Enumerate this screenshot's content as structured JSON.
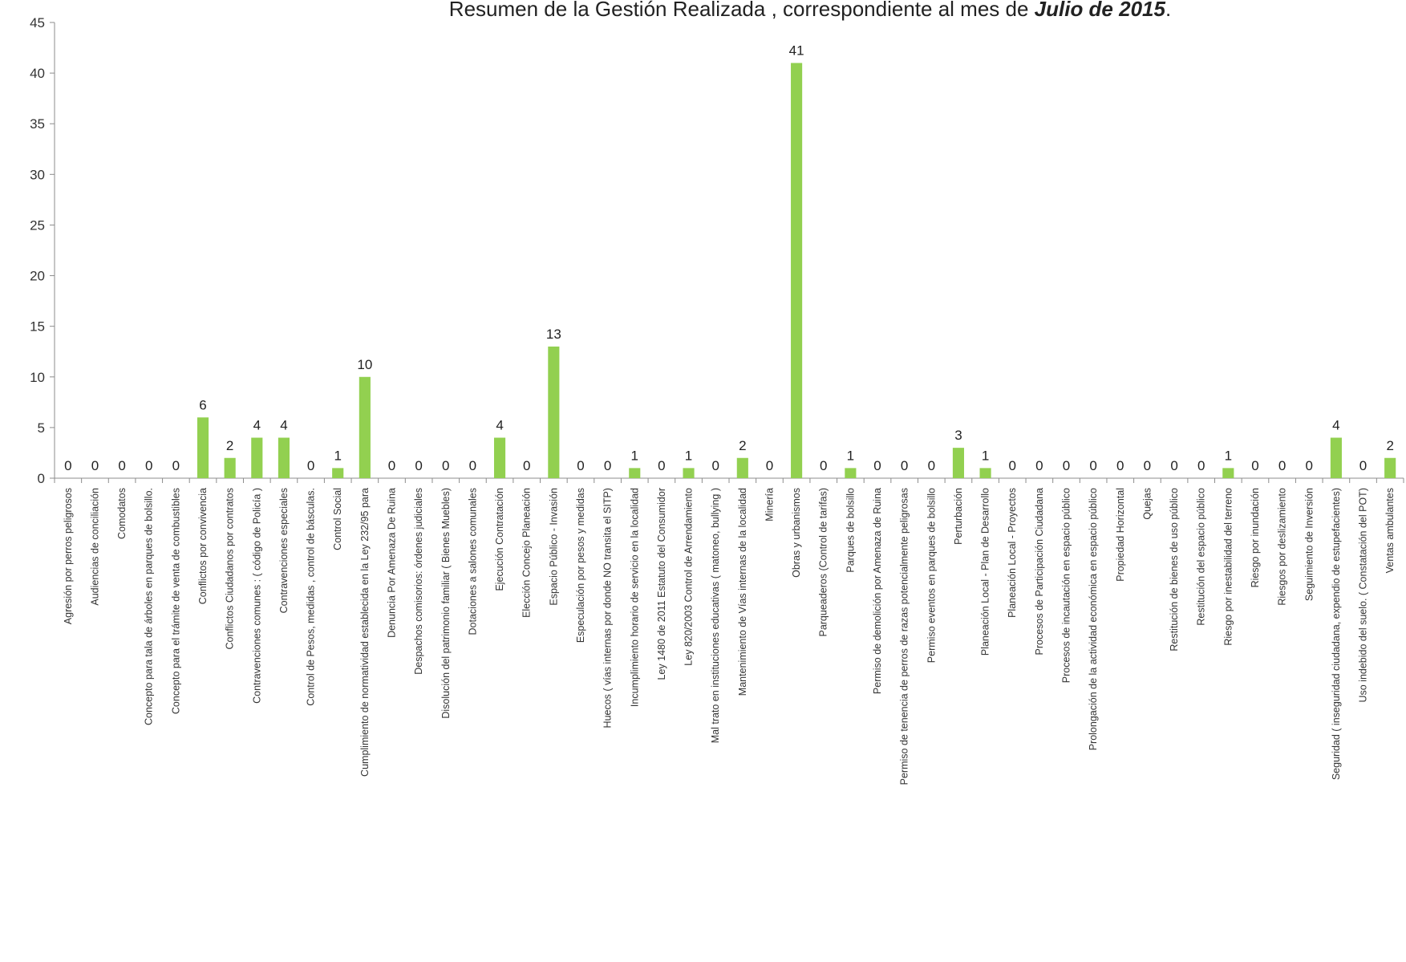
{
  "chart_data": {
    "type": "bar",
    "title": "Resumen de  la Gestión Realizada , correspondiente al mes  de ",
    "title_emphasis": "Julio de 2015",
    "title_end": ".",
    "xlabel": "",
    "ylabel": "",
    "ylim": [
      0,
      45
    ],
    "yticks": [
      "0",
      "5",
      "10",
      "15",
      "20",
      "25",
      "30",
      "35",
      "40",
      "45"
    ],
    "grid": false,
    "legend": "none",
    "bar_color": "#92d050",
    "categories": [
      "Agresión por perros peligrosos",
      "Audiencias de conciliación",
      "Comodatos",
      "Concepto para  tala de árboles en parques de bolsillo.",
      "Concepto para el trámite de venta de combustibles",
      "Conflictos  por convivencia",
      "Conflictos Ciudadanos  por contratos",
      "Contravenciones  comunes : ( código de Policía )",
      "Contravenciones especiales",
      "Control de Pesos, medidas , control de básculas.",
      "Control Social",
      "Cumplimiento de normatividad establecida en  la Ley 232/95 para",
      "Denuncia Por Amenaza De Ruina",
      "Despachos comisorios:  órdenes judiciales",
      "Disolución del patrimonio familiar ( Bienes Muebles)",
      "Dotaciones a salones comunales",
      "Ejecución Contratación",
      "Elección Concejo Planeación",
      "Espacio Público - Invasión",
      "Especulación por pesos y medidas",
      "Huecos ( vías internas por donde NO transita el SITP)",
      "Incumplimiento horario de servicio en la localidad",
      "Ley 1480 de 2011 Estatuto del Consumidor",
      "Ley 820/2003 Control de Arrendamiento",
      "Mal trato en  instituciones educativas ( matoneo, bullying )",
      "Mantenimiento de  Vías internas de la localidad",
      "Minería",
      "Obras y urbanismos",
      "Parqueaderos (Control de tarifas)",
      "Parques de bolsillo",
      "Permiso  de demolición por Amenaza de Ruina",
      "Permiso de tenencia de perros  de razas potencialmente peligrosas",
      "Permiso eventos en parques de bolsillo",
      "Perturbación",
      "Planeación Local - Plan de Desarrollo",
      "Planeación Local - Proyectos",
      "Procesos  de  Participación Ciudadana",
      "Procesos de incautación en espacio público",
      "Prolongación de  la actividad económica en espacio público",
      "Propiedad Horizontal",
      "Quejas",
      "Restitución de bienes de uso público",
      "Restitución del espacio público",
      "Riesgo por inestabilidad del terreno",
      "Riesgo por inundación",
      "Riesgos por deslizamiento",
      "Seguimiento de Inversión",
      "Seguridad ( inseguridad ciudadana, expendio de estupefacientes)",
      "Uso indebido del suelo.  ( Constatación del POT)",
      "Ventas ambulantes"
    ],
    "values": [
      0,
      0,
      0,
      0,
      0,
      6,
      2,
      4,
      4,
      0,
      1,
      10,
      0,
      0,
      0,
      0,
      4,
      0,
      13,
      0,
      0,
      1,
      0,
      1,
      0,
      2,
      0,
      41,
      0,
      1,
      0,
      0,
      0,
      3,
      1,
      0,
      0,
      0,
      0,
      0,
      0,
      0,
      0,
      1,
      0,
      0,
      0,
      4,
      0,
      2
    ],
    "data_labels": [
      "0",
      "0",
      "0",
      "0",
      "0",
      "6",
      "2",
      "4",
      "4",
      "0",
      "1",
      "10",
      "0",
      "0",
      "0",
      "0",
      "4",
      "0",
      "13",
      "0",
      "0",
      "1",
      "0",
      "1",
      "0",
      "2",
      "0",
      "41",
      "0",
      "1",
      "0",
      "0",
      "0",
      "3",
      "1",
      "0",
      "0",
      "0",
      "0",
      "0",
      "0",
      "0",
      "0",
      "1",
      "0",
      "0",
      "0",
      "4",
      "0",
      "2"
    ]
  }
}
